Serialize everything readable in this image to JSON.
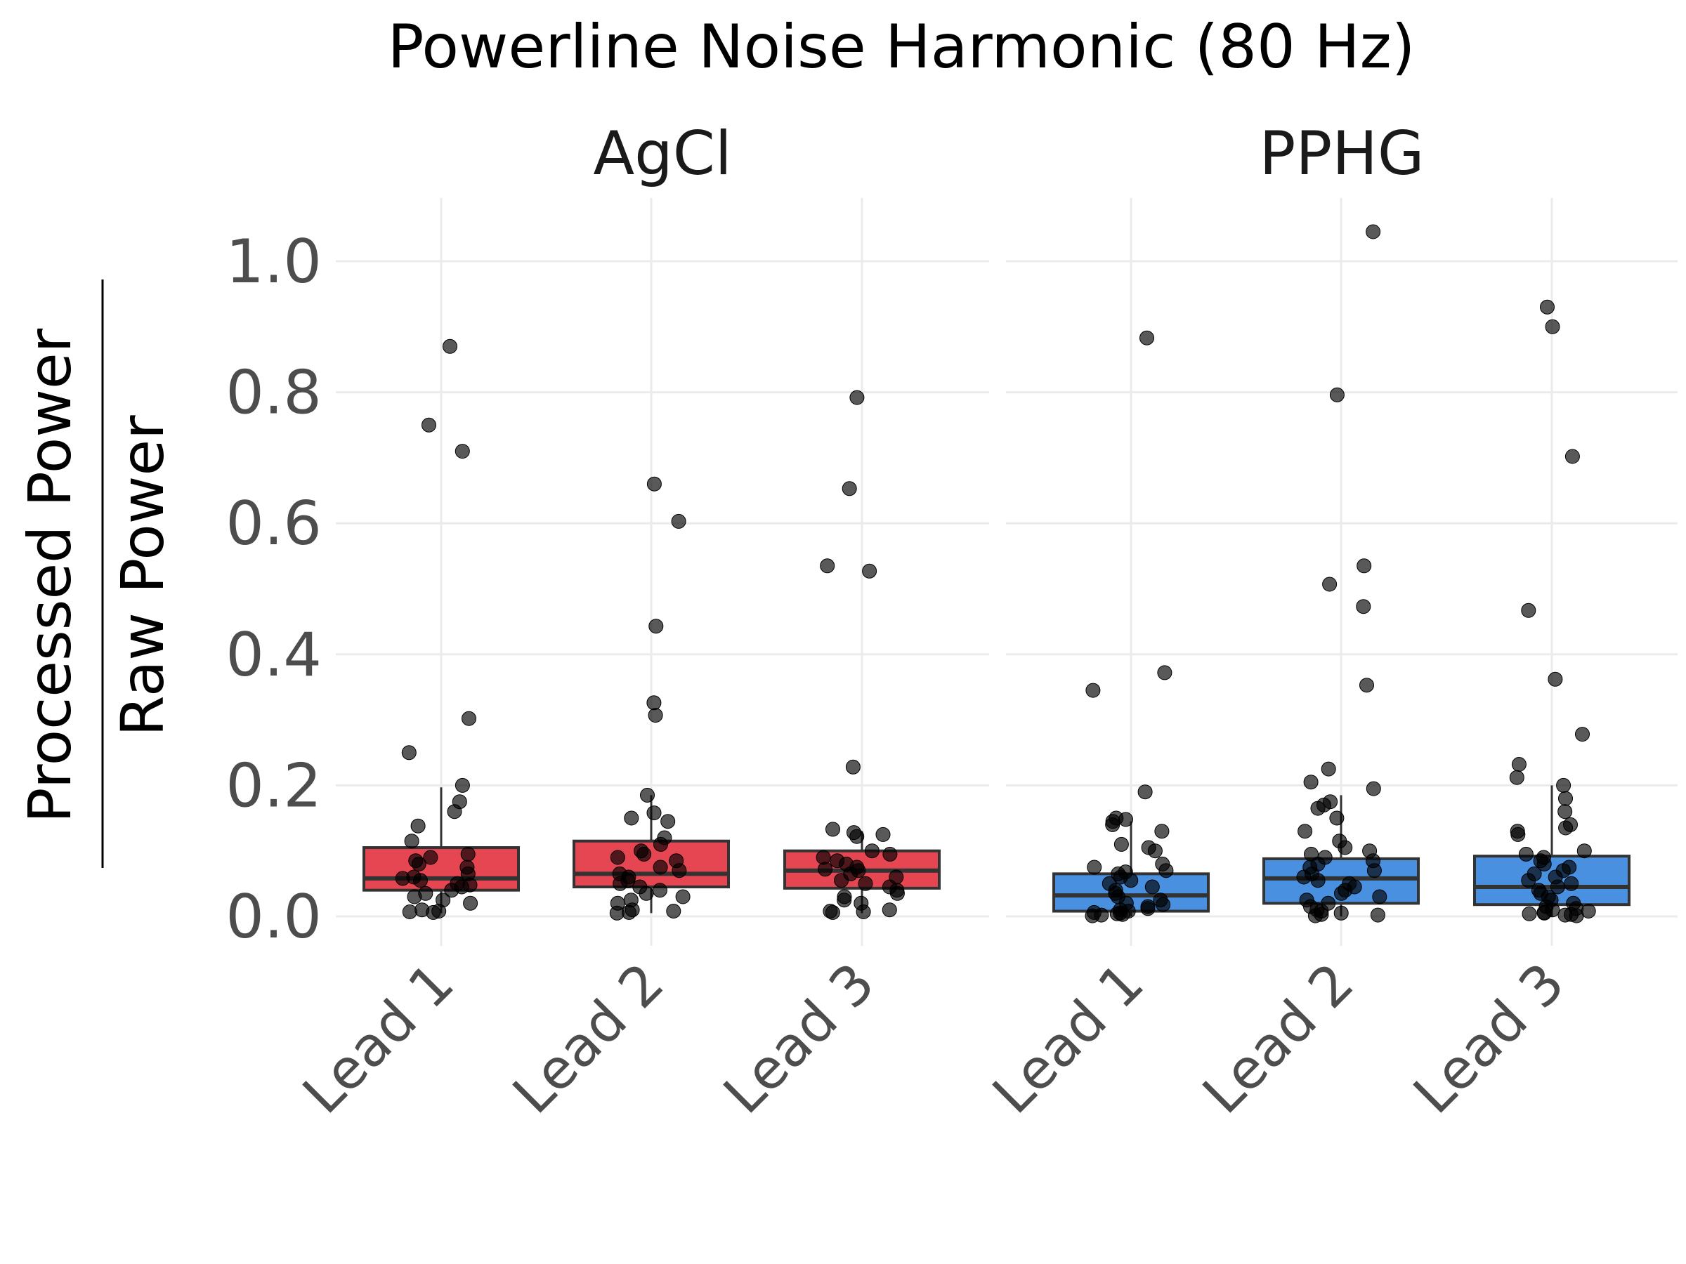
{
  "chart_data": {
    "type": "boxplot",
    "title": "Powerline Noise Harmonic (80 Hz)",
    "ylabel_numerator": "Processed Power",
    "ylabel_denominator": "Raw Power",
    "xlabel": "",
    "ylim": [
      -0.06,
      1.1
    ],
    "yticks": [
      0.0,
      0.2,
      0.4,
      0.6,
      0.8,
      1.0
    ],
    "ytick_labels": [
      "0.0",
      "0.2",
      "0.4",
      "0.6",
      "0.8",
      "1.0"
    ],
    "categories": [
      "Lead 1",
      "Lead 2",
      "Lead 3"
    ],
    "grid": true,
    "legend": "none",
    "facets": [
      {
        "name": "AgCl",
        "color": "#e64552",
        "boxes": [
          {
            "category": "Lead 1",
            "q1": 0.04,
            "median": 0.058,
            "q3": 0.105,
            "whisker_low": 0.005,
            "whisker_high": 0.197,
            "points": [
              0.87,
              0.75,
              0.71,
              0.302,
              0.25,
              0.2,
              0.175,
              0.16,
              0.138,
              0.115,
              0.095,
              0.09,
              0.085,
              0.08,
              0.075,
              0.065,
              0.06,
              0.058,
              0.055,
              0.05,
              0.048,
              0.045,
              0.04,
              0.035,
              0.03,
              0.025,
              0.02,
              0.01,
              0.008,
              0.007,
              0.006
            ]
          },
          {
            "category": "Lead 2",
            "q1": 0.045,
            "median": 0.065,
            "q3": 0.115,
            "whisker_low": 0.005,
            "whisker_high": 0.185,
            "points": [
              0.66,
              0.603,
              0.443,
              0.326,
              0.307,
              0.185,
              0.158,
              0.15,
              0.145,
              0.12,
              0.11,
              0.1,
              0.095,
              0.09,
              0.085,
              0.075,
              0.07,
              0.065,
              0.06,
              0.055,
              0.05,
              0.045,
              0.04,
              0.035,
              0.03,
              0.025,
              0.02,
              0.01,
              0.008,
              0.006,
              0.005
            ]
          },
          {
            "category": "Lead 3",
            "q1": 0.043,
            "median": 0.07,
            "q3": 0.1,
            "whisker_low": 0.005,
            "whisker_high": 0.13,
            "points": [
              0.792,
              0.653,
              0.535,
              0.527,
              0.228,
              0.133,
              0.128,
              0.125,
              0.122,
              0.1,
              0.095,
              0.09,
              0.085,
              0.08,
              0.075,
              0.072,
              0.07,
              0.065,
              0.06,
              0.055,
              0.05,
              0.045,
              0.04,
              0.035,
              0.03,
              0.025,
              0.02,
              0.01,
              0.008,
              0.007,
              0.006
            ]
          }
        ]
      },
      {
        "name": "PPHG",
        "color": "#4a90e0",
        "boxes": [
          {
            "category": "Lead 1",
            "q1": 0.008,
            "median": 0.032,
            "q3": 0.065,
            "whisker_low": 0.0,
            "whisker_high": 0.145,
            "points": [
              0.883,
              0.372,
              0.345,
              0.19,
              0.15,
              0.148,
              0.145,
              0.14,
              0.13,
              0.11,
              0.105,
              0.1,
              0.08,
              0.075,
              0.07,
              0.068,
              0.065,
              0.06,
              0.055,
              0.05,
              0.045,
              0.04,
              0.035,
              0.03,
              0.025,
              0.02,
              0.018,
              0.015,
              0.012,
              0.01,
              0.008,
              0.006,
              0.005,
              0.004,
              0.003,
              0.002,
              0.001
            ]
          },
          {
            "category": "Lead 2",
            "q1": 0.02,
            "median": 0.058,
            "q3": 0.088,
            "whisker_low": 0.0,
            "whisker_high": 0.185,
            "points": [
              1.045,
              0.796,
              0.535,
              0.507,
              0.473,
              0.353,
              0.225,
              0.205,
              0.195,
              0.175,
              0.17,
              0.165,
              0.15,
              0.13,
              0.115,
              0.105,
              0.1,
              0.095,
              0.09,
              0.085,
              0.08,
              0.075,
              0.07,
              0.065,
              0.06,
              0.055,
              0.05,
              0.045,
              0.04,
              0.035,
              0.03,
              0.025,
              0.02,
              0.015,
              0.01,
              0.008,
              0.005,
              0.003,
              0.002,
              0.001
            ]
          },
          {
            "category": "Lead 3",
            "q1": 0.018,
            "median": 0.045,
            "q3": 0.092,
            "whisker_low": 0.0,
            "whisker_high": 0.2,
            "points": [
              0.93,
              0.9,
              0.702,
              0.467,
              0.362,
              0.278,
              0.232,
              0.212,
              0.2,
              0.18,
              0.16,
              0.14,
              0.135,
              0.13,
              0.125,
              0.1,
              0.095,
              0.09,
              0.085,
              0.08,
              0.075,
              0.07,
              0.065,
              0.06,
              0.055,
              0.05,
              0.045,
              0.04,
              0.035,
              0.03,
              0.025,
              0.02,
              0.015,
              0.012,
              0.01,
              0.008,
              0.006,
              0.005,
              0.004,
              0.003,
              0.002,
              0.001
            ]
          }
        ]
      }
    ]
  }
}
